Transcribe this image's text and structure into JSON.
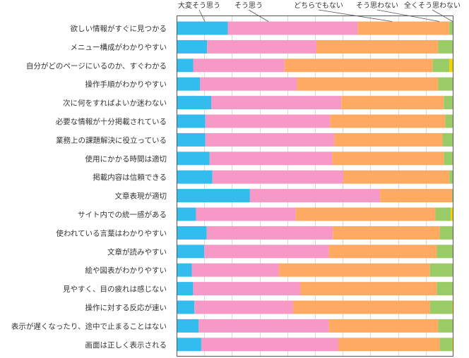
{
  "chart_data": {
    "type": "bar",
    "orientation": "horizontal",
    "stacked": "percent",
    "title": "",
    "xlabel": "",
    "ylabel": "",
    "xlim": [
      0,
      100
    ],
    "grid": true,
    "legend_position": "top",
    "categories": [
      "欲しい情報がすぐに見つかる",
      "メニュー構成がわかりやすい",
      "自分がどのページにいるのか、すぐわかる",
      "操作手順がわかりやすい",
      "次に何をすればよいか迷わない",
      "必要な情報が十分掲載されている",
      "業務上の課題解決に役立っている",
      "使用にかかる時間は適切",
      "掲載内容は信頼できる",
      "文章表現が適切",
      "サイト内での統一感がある",
      "使われている言葉はわかりやすい",
      "文章が読みやすい",
      "絵や図表がわかりやすい",
      "見やすく、目の疲れは感じない",
      "操作に対する反応が速い",
      "表示が遅くなったり、途中で止まることはない",
      "画面は正しく表示される"
    ],
    "series": [
      {
        "name": "大変そう思う",
        "color": "#33bdee",
        "values": [
          18.5,
          11,
          6,
          8.5,
          12.5,
          10.5,
          10.5,
          12,
          13,
          26.5,
          7,
          11,
          10,
          5.5,
          6,
          6.5,
          8,
          9
        ]
      },
      {
        "name": "そう思う",
        "color": "#f799c6",
        "values": [
          47,
          39.5,
          33,
          35,
          47,
          45.5,
          47,
          44.5,
          47.5,
          47,
          36,
          46,
          45,
          31.5,
          39,
          36,
          47,
          50
        ]
      },
      {
        "name": "どちらでもない",
        "color": "#ffaa63",
        "values": [
          33,
          44,
          53.5,
          51,
          37,
          42,
          39.5,
          40.5,
          38.5,
          26,
          50.5,
          39,
          39,
          54.5,
          49.5,
          50,
          39.5,
          37
        ]
      },
      {
        "name": "そう思わない",
        "color": "#99cc66",
        "values": [
          1.5,
          5.5,
          6,
          5.5,
          3.5,
          3,
          4,
          3.5,
          1.5,
          0.5,
          5.5,
          5,
          6,
          8.5,
          6,
          8,
          5.5,
          4.5
        ]
      },
      {
        "name": "全くそう思わない",
        "color": "#f5d000",
        "values": [
          0,
          0,
          1.5,
          0,
          0,
          0,
          0,
          0,
          0,
          0,
          1,
          0,
          0,
          0,
          0,
          0.5,
          0,
          0.5
        ]
      }
    ]
  }
}
